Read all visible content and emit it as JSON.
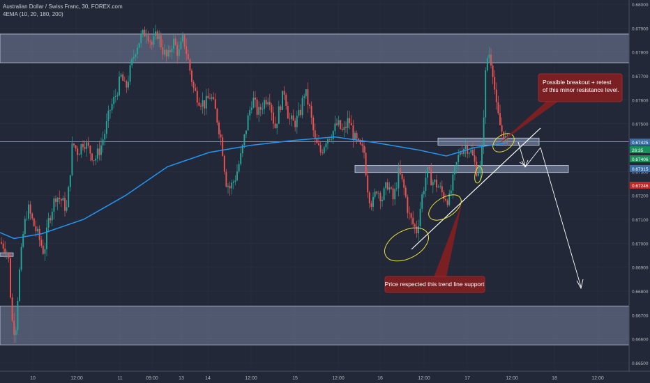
{
  "header": {
    "symbol_line": "Australian Dollar / Swiss Franc, 30, FOREX.com",
    "indicator_line": "4EMA (10, 20, 180, 200)"
  },
  "colors": {
    "background": "#232838",
    "up_candle": "#26a69a",
    "down_candle": "#ef5350",
    "ema": "#2196f3",
    "zone_fill": "#8c9bb9",
    "zone_border": "#c9d2e6",
    "trend_line": "#ffffff",
    "highlight_ellipse": "#e8e337",
    "callout_fill": "#7a1f22",
    "price_tag_red": "#c62828",
    "price_tag_green": "#1b8f5a",
    "price_tag_blue": "#3a6ea5"
  },
  "chart_data": {
    "type": "candlestick",
    "y_axis": {
      "side": "right",
      "ticks": [
        "0.68000",
        "0.67900",
        "0.67800",
        "0.67700",
        "0.67600",
        "0.67500",
        "0.67400",
        "0.67300",
        "0.67200",
        "0.67100",
        "0.67000",
        "0.66900",
        "0.66800",
        "0.66700",
        "0.66600",
        "0.66500"
      ],
      "ylim": [
        0.66455,
        0.68035
      ]
    },
    "x_axis": {
      "ticks": [
        "10",
        "12:00",
        "11",
        "09:00",
        "13",
        "14",
        "12:00",
        "15",
        "12:00",
        "16",
        "12:00",
        "17",
        "12:00",
        "18",
        "12:00"
      ]
    },
    "price_tags": [
      {
        "label": "0.67425",
        "value": 0.67425,
        "style": "blue"
      },
      {
        "label": "26:35",
        "value": 0.67383,
        "style": "green"
      },
      {
        "label": "0.67406",
        "value": 0.67406,
        "style": "green"
      },
      {
        "label": "0.67315",
        "value": 0.67315,
        "style": "blue"
      },
      {
        "label": "0.67246",
        "value": 0.67246,
        "style": "red"
      }
    ],
    "zones": [
      {
        "from": 0.67875,
        "to": 0.67755
      },
      {
        "from": 0.66737,
        "to": 0.66575
      }
    ],
    "horizontal_line": 0.67425,
    "annotations": [
      "Possible breakout + retest of this minor resistance level.",
      "Price respected this trend line support"
    ]
  }
}
